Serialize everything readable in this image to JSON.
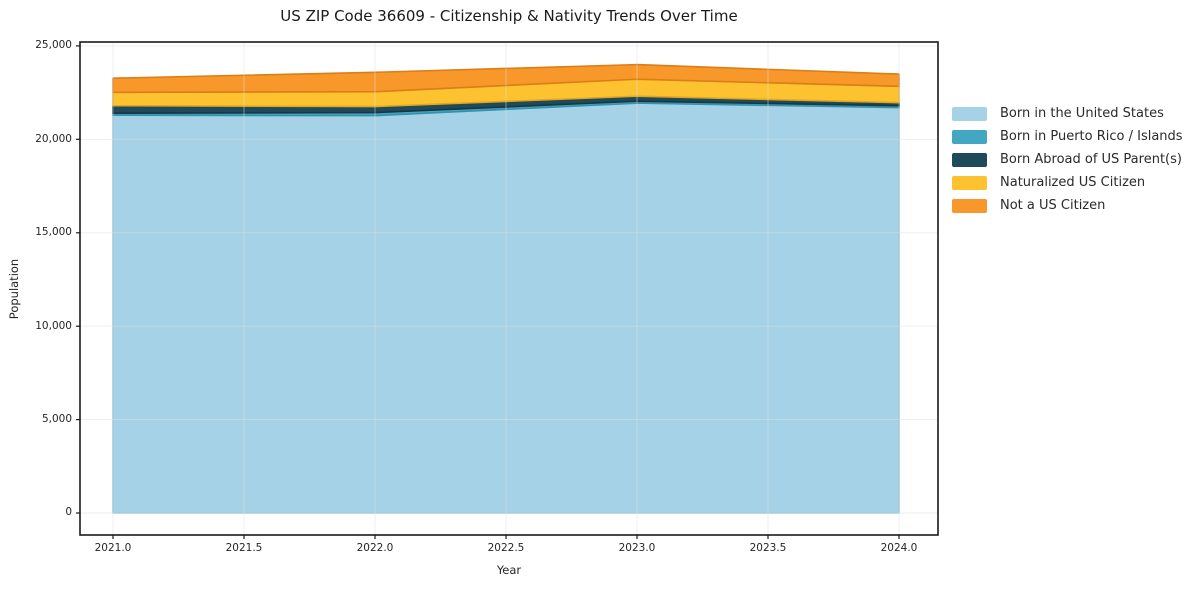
{
  "figure": {
    "title": "US ZIP Code 36609 - Citizenship & Nativity Trends Over Time"
  },
  "chart_data": {
    "type": "area",
    "stacked": true,
    "title": "US ZIP Code 36609 - Citizenship & Nativity Trends Over Time",
    "xlabel": "Year",
    "ylabel": "Population",
    "x": [
      2021,
      2022,
      2023,
      2024
    ],
    "series": [
      {
        "name": "Born in the United States",
        "color": "#A5D2E6",
        "edge_color": "#8AC1DA",
        "values": [
          21290,
          21270,
          21940,
          21700
        ]
      },
      {
        "name": "Born in Puerto Rico / Islands",
        "color": "#44A7C2",
        "edge_color": "#3591AC",
        "values": [
          110,
          160,
          100,
          100
        ]
      },
      {
        "name": "Born Abroad of US Parent(s)",
        "color": "#1F4A5C",
        "edge_color": "#163746",
        "values": [
          400,
          320,
          270,
          160
        ]
      },
      {
        "name": "Naturalized US Citizen",
        "color": "#FDC22F",
        "edge_color": "#E2A71B",
        "values": [
          720,
          800,
          910,
          880
        ]
      },
      {
        "name": "Not a US Citizen",
        "color": "#F8982A",
        "edge_color": "#DA7E18",
        "values": [
          750,
          1040,
          780,
          650
        ]
      }
    ],
    "stacked_totals": [
      23270,
      23590,
      24000,
      23490
    ],
    "xticks": {
      "values": [
        2021.0,
        2021.5,
        2022.0,
        2022.5,
        2023.0,
        2023.5,
        2024.0
      ],
      "labels": [
        "2021.0",
        "2021.5",
        "2022.0",
        "2022.5",
        "2023.0",
        "2023.5",
        "2024.0"
      ]
    },
    "yticks": {
      "values": [
        0,
        5000,
        10000,
        15000,
        20000,
        25000
      ],
      "labels": [
        "0",
        "5,000",
        "10,000",
        "15,000",
        "20,000",
        "25,000"
      ]
    },
    "xlim": [
      2020.874,
      2024.149
    ],
    "ylim": [
      -1178,
      25210
    ],
    "grid": true,
    "legend_position": "right",
    "colors": {
      "background": "#ffffff",
      "grid": "#dedede",
      "spine": "#1a1a1a",
      "text": "#262626"
    }
  }
}
